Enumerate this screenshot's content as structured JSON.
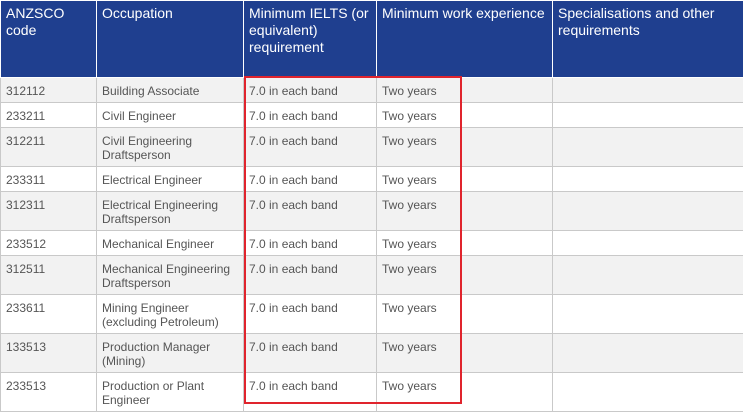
{
  "table": {
    "headers": [
      "ANZSCO code",
      "Occupation",
      "Minimum IELTS (or equivalent) requirement",
      "Minimum work experience",
      "Specialisations and other requirements"
    ],
    "rows": [
      {
        "code": "312112",
        "occupation": "Building Associate",
        "ielts": "7.0 in each band",
        "experience": "Two years",
        "other": ""
      },
      {
        "code": "233211",
        "occupation": "Civil Engineer",
        "ielts": "7.0 in each band",
        "experience": "Two years",
        "other": ""
      },
      {
        "code": "312211",
        "occupation": "Civil Engineering Draftsperson",
        "ielts": "7.0 in each band",
        "experience": "Two years",
        "other": ""
      },
      {
        "code": "233311",
        "occupation": "Electrical Engineer",
        "ielts": "7.0 in each band",
        "experience": "Two years",
        "other": ""
      },
      {
        "code": "312311",
        "occupation": "Electrical Engineering Draftsperson",
        "ielts": "7.0 in each band",
        "experience": "Two years",
        "other": ""
      },
      {
        "code": "233512",
        "occupation": "Mechanical Engineer",
        "ielts": "7.0 in each band",
        "experience": "Two years",
        "other": ""
      },
      {
        "code": "312511",
        "occupation": "Mechanical Engineering Draftsperson",
        "ielts": "7.0 in each band",
        "experience": "Two years",
        "other": ""
      },
      {
        "code": "233611",
        "occupation": "Mining Engineer (excluding Petroleum)",
        "ielts": "7.0 in each band",
        "experience": "Two years",
        "other": ""
      },
      {
        "code": "133513",
        "occupation": "Production Manager (Mining)",
        "ielts": "7.0 in each band",
        "experience": "Two years",
        "other": ""
      },
      {
        "code": "233513",
        "occupation": "Production or Plant Engineer",
        "ielts": "7.0 in each band",
        "experience": "Two years",
        "other": ""
      }
    ]
  },
  "colors": {
    "header_bg": "#1f3f8f",
    "header_text": "#ffffff",
    "alt_row_bg": "#f2f2f2",
    "highlight_border": "#e0242d"
  }
}
